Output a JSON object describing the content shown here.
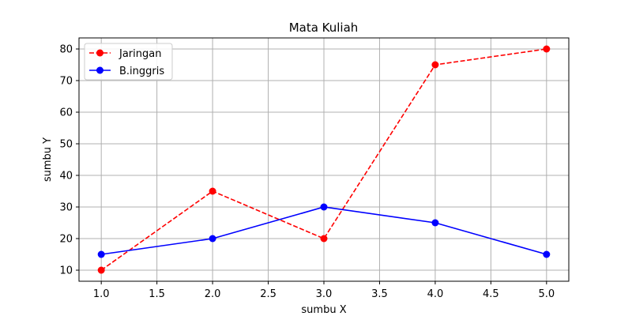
{
  "chart_data": {
    "type": "line",
    "title": "Mata Kuliah",
    "xlabel": "sumbu X",
    "ylabel": "sumbu Y",
    "x": [
      1,
      2,
      3,
      4,
      5
    ],
    "xlim": [
      0.8,
      5.2
    ],
    "ylim": [
      6.5,
      83.5
    ],
    "xticks": [
      1.0,
      1.5,
      2.0,
      2.5,
      3.0,
      3.5,
      4.0,
      4.5,
      5.0
    ],
    "xtick_labels": [
      "1.0",
      "1.5",
      "2.0",
      "2.5",
      "3.0",
      "3.5",
      "4.0",
      "4.5",
      "5.0"
    ],
    "yticks": [
      10,
      20,
      30,
      40,
      50,
      60,
      70,
      80
    ],
    "ytick_labels": [
      "10",
      "20",
      "30",
      "40",
      "50",
      "60",
      "70",
      "80"
    ],
    "grid": true,
    "legend_position": "top-left",
    "series": [
      {
        "name": "Jaringan",
        "values": [
          10,
          35,
          20,
          75,
          80
        ],
        "color": "#ff0000",
        "line_style": "dashed",
        "marker": "circle"
      },
      {
        "name": "B.inggris",
        "values": [
          15,
          20,
          30,
          25,
          15
        ],
        "color": "#0000ff",
        "line_style": "solid",
        "marker": "circle"
      }
    ]
  }
}
